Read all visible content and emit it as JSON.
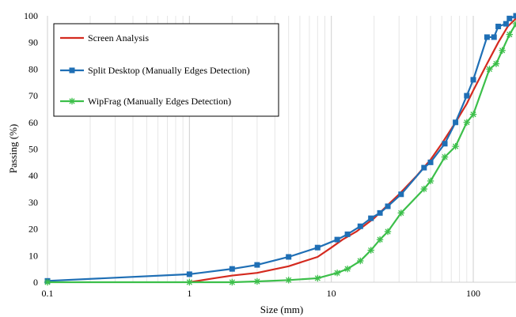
{
  "chart_data": {
    "type": "line",
    "xscale": "log",
    "xlim": [
      0.1,
      200
    ],
    "ylim": [
      0,
      100
    ],
    "xlabel": "Size (mm)",
    "ylabel": "Passing (%)",
    "x_ticks": [
      0.1,
      1,
      10,
      100
    ],
    "x_tick_labels": [
      "0.1",
      "1",
      "10",
      "100"
    ],
    "y_ticks": [
      0,
      10,
      20,
      30,
      40,
      50,
      60,
      70,
      80,
      90,
      100
    ],
    "y_tick_labels": [
      "0",
      "10",
      "20",
      "30",
      "40",
      "50",
      "60",
      "70",
      "80",
      "90",
      "100"
    ],
    "grid": "vertical",
    "legend_position": "top-left",
    "series": [
      {
        "name": "Screen Analysis",
        "color": "#d42a1f",
        "marker": "none",
        "x": [
          1,
          1.5,
          2,
          3,
          5,
          8,
          10,
          12,
          15,
          20,
          25,
          30,
          40,
          50,
          60,
          75,
          90,
          100,
          125,
          150,
          175,
          200
        ],
        "y": [
          0,
          1.5,
          2.5,
          3.5,
          6,
          9.5,
          13,
          16,
          19,
          24,
          29,
          33,
          40,
          46,
          52,
          60,
          67,
          72,
          82,
          90,
          96,
          99
        ]
      },
      {
        "name": "Split Desktop (Manually Edges Detection)",
        "color": "#1f6fb5",
        "marker": "square",
        "x": [
          0.1,
          1,
          2,
          3,
          5,
          8,
          11,
          13,
          16,
          19,
          22,
          25,
          31,
          45,
          50,
          63,
          75,
          90,
          100,
          125,
          140,
          150,
          170,
          180,
          200
        ],
        "y": [
          0.5,
          3,
          5,
          6.5,
          9.5,
          13,
          16,
          18,
          21,
          24,
          26,
          28.5,
          33,
          43,
          45,
          52,
          60,
          70,
          76,
          92,
          92,
          96,
          97,
          99,
          100
        ]
      },
      {
        "name": "WipFrag (Manually Edges Detection)",
        "color": "#3cbf4a",
        "marker": "asterisk",
        "x": [
          0.1,
          1,
          2,
          3,
          5,
          8,
          11,
          13,
          16,
          19,
          22,
          25,
          31,
          45,
          50,
          63,
          75,
          90,
          100,
          130,
          145,
          160,
          180,
          200
        ],
        "y": [
          0,
          0,
          0,
          0.3,
          0.8,
          1.5,
          3.5,
          5,
          8,
          12,
          16,
          19,
          26,
          35,
          38,
          47,
          51,
          60,
          63,
          80,
          82,
          87,
          93,
          97
        ]
      }
    ]
  }
}
